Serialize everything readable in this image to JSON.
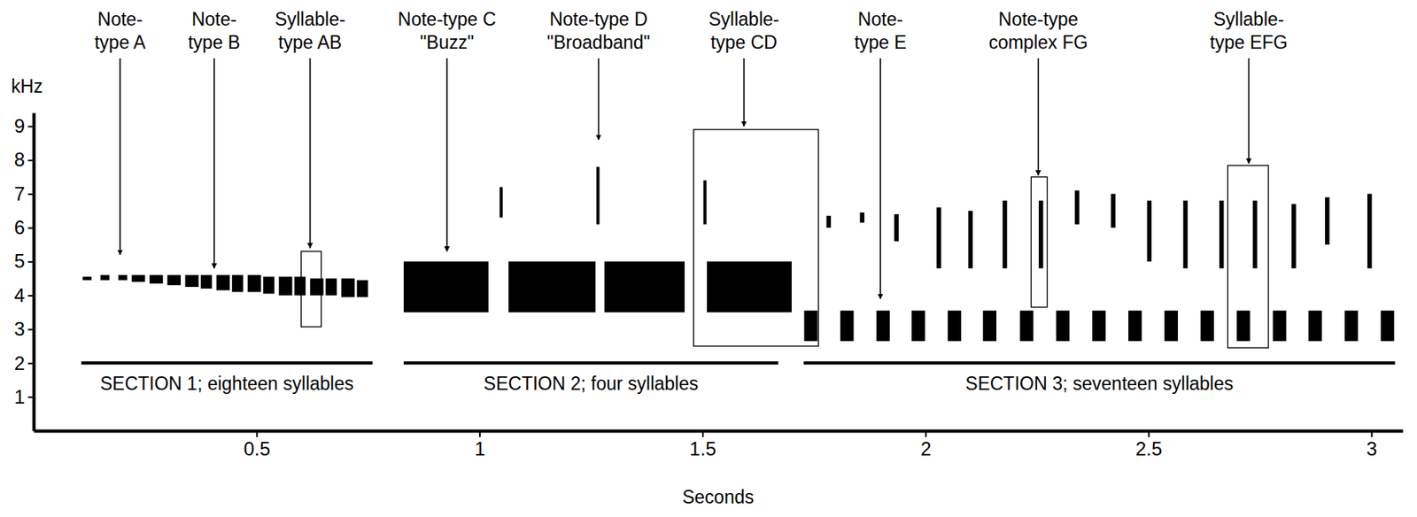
{
  "chart_data": {
    "type": "spectrogram",
    "xlabel": "Seconds",
    "ylabel": "kHz",
    "xlim": [
      0,
      3.07
    ],
    "xticks": [
      0.5,
      1,
      1.5,
      2,
      2.5,
      3
    ],
    "ylim": [
      0,
      9.4
    ],
    "yticks": [
      1,
      2,
      3,
      4,
      5,
      6,
      7,
      8,
      9
    ],
    "color": "#000000",
    "notes": [
      {
        "t0": 0.11,
        "t1": 0.13,
        "f0": 4.45,
        "f1": 4.55
      },
      {
        "t0": 0.15,
        "t1": 0.17,
        "f0": 4.45,
        "f1": 4.6
      },
      {
        "t0": 0.19,
        "t1": 0.21,
        "f0": 4.45,
        "f1": 4.6
      },
      {
        "t0": 0.22,
        "t1": 0.25,
        "f0": 4.4,
        "f1": 4.6
      },
      {
        "t0": 0.26,
        "t1": 0.29,
        "f0": 4.35,
        "f1": 4.6
      },
      {
        "t0": 0.3,
        "t1": 0.33,
        "f0": 4.3,
        "f1": 4.6
      },
      {
        "t0": 0.34,
        "t1": 0.37,
        "f0": 4.25,
        "f1": 4.6
      },
      {
        "t0": 0.375,
        "t1": 0.4,
        "f0": 4.2,
        "f1": 4.6
      },
      {
        "t0": 0.41,
        "t1": 0.44,
        "f0": 4.15,
        "f1": 4.6
      },
      {
        "t0": 0.445,
        "t1": 0.47,
        "f0": 4.1,
        "f1": 4.6
      },
      {
        "t0": 0.48,
        "t1": 0.51,
        "f0": 4.1,
        "f1": 4.6
      },
      {
        "t0": 0.515,
        "t1": 0.54,
        "f0": 4.05,
        "f1": 4.55
      },
      {
        "t0": 0.55,
        "t1": 0.58,
        "f0": 4.0,
        "f1": 4.55
      },
      {
        "t0": 0.585,
        "t1": 0.61,
        "f0": 4.0,
        "f1": 4.55
      },
      {
        "t0": 0.62,
        "t1": 0.65,
        "f0": 4.0,
        "f1": 4.5
      },
      {
        "t0": 0.655,
        "t1": 0.68,
        "f0": 4.0,
        "f1": 4.5
      },
      {
        "t0": 0.69,
        "t1": 0.72,
        "f0": 3.95,
        "f1": 4.5
      },
      {
        "t0": 0.725,
        "t1": 0.75,
        "f0": 3.95,
        "f1": 4.45
      },
      {
        "t0": 0.83,
        "t1": 1.02,
        "f0": 3.5,
        "f1": 5.0
      },
      {
        "t0": 1.045,
        "t1": 1.052,
        "f0": 6.3,
        "f1": 7.2
      },
      {
        "t0": 1.065,
        "t1": 1.26,
        "f0": 3.5,
        "f1": 5.0
      },
      {
        "t0": 1.262,
        "t1": 1.269,
        "f0": 6.1,
        "f1": 7.8
      },
      {
        "t0": 1.28,
        "t1": 1.46,
        "f0": 3.5,
        "f1": 5.0
      },
      {
        "t0": 1.502,
        "t1": 1.509,
        "f0": 6.1,
        "f1": 7.4
      },
      {
        "t0": 1.51,
        "t1": 1.7,
        "f0": 3.5,
        "f1": 5.0
      },
      {
        "t0": 1.728,
        "t1": 1.758,
        "f0": 2.65,
        "f1": 3.55
      },
      {
        "t0": 1.778,
        "t1": 1.788,
        "f0": 6.0,
        "f1": 6.35
      },
      {
        "t0": 1.809,
        "t1": 1.839,
        "f0": 2.65,
        "f1": 3.55
      },
      {
        "t0": 1.853,
        "t1": 1.863,
        "f0": 6.15,
        "f1": 6.45
      },
      {
        "t0": 1.89,
        "t1": 1.92,
        "f0": 2.65,
        "f1": 3.55
      },
      {
        "t0": 1.93,
        "t1": 1.94,
        "f0": 5.6,
        "f1": 6.4
      },
      {
        "t0": 1.969,
        "t1": 1.999,
        "f0": 2.65,
        "f1": 3.55
      },
      {
        "t0": 2.025,
        "t1": 2.035,
        "f0": 4.8,
        "f1": 6.6
      },
      {
        "t0": 2.05,
        "t1": 2.08,
        "f0": 2.65,
        "f1": 3.55
      },
      {
        "t0": 2.096,
        "t1": 2.106,
        "f0": 4.8,
        "f1": 6.5
      },
      {
        "t0": 2.129,
        "t1": 2.159,
        "f0": 2.65,
        "f1": 3.55
      },
      {
        "t0": 2.173,
        "t1": 2.183,
        "f0": 4.8,
        "f1": 6.8
      },
      {
        "t0": 2.212,
        "t1": 2.242,
        "f0": 2.65,
        "f1": 3.55
      },
      {
        "t0": 2.254,
        "t1": 2.264,
        "f0": 4.8,
        "f1": 6.8
      },
      {
        "t0": 2.293,
        "t1": 2.323,
        "f0": 2.65,
        "f1": 3.55
      },
      {
        "t0": 2.335,
        "t1": 2.345,
        "f0": 6.1,
        "f1": 7.1
      },
      {
        "t0": 2.374,
        "t1": 2.404,
        "f0": 2.65,
        "f1": 3.55
      },
      {
        "t0": 2.416,
        "t1": 2.426,
        "f0": 6.0,
        "f1": 7.0
      },
      {
        "t0": 2.455,
        "t1": 2.485,
        "f0": 2.65,
        "f1": 3.55
      },
      {
        "t0": 2.497,
        "t1": 2.507,
        "f0": 5.0,
        "f1": 6.8
      },
      {
        "t0": 2.536,
        "t1": 2.566,
        "f0": 2.65,
        "f1": 3.55
      },
      {
        "t0": 2.578,
        "t1": 2.588,
        "f0": 4.8,
        "f1": 6.8
      },
      {
        "t0": 2.617,
        "t1": 2.647,
        "f0": 2.65,
        "f1": 3.55
      },
      {
        "t0": 2.659,
        "t1": 2.669,
        "f0": 4.8,
        "f1": 6.8
      },
      {
        "t0": 2.698,
        "t1": 2.728,
        "f0": 2.65,
        "f1": 3.55
      },
      {
        "t0": 2.734,
        "t1": 2.744,
        "f0": 4.8,
        "f1": 6.8
      },
      {
        "t0": 2.779,
        "t1": 2.809,
        "f0": 2.65,
        "f1": 3.55
      },
      {
        "t0": 2.821,
        "t1": 2.831,
        "f0": 4.8,
        "f1": 6.7
      },
      {
        "t0": 2.859,
        "t1": 2.889,
        "f0": 2.65,
        "f1": 3.55
      },
      {
        "t0": 2.896,
        "t1": 2.906,
        "f0": 5.5,
        "f1": 6.9
      },
      {
        "t0": 2.94,
        "t1": 2.97,
        "f0": 2.65,
        "f1": 3.55
      },
      {
        "t0": 2.991,
        "t1": 3.001,
        "f0": 4.8,
        "f1": 7.0
      },
      {
        "t0": 3.021,
        "t1": 3.051,
        "f0": 2.65,
        "f1": 3.55
      }
    ],
    "boxes": [
      {
        "t0": 0.6,
        "t1": 0.645,
        "f0": 3.07,
        "f1": 5.3
      },
      {
        "t0": 1.48,
        "t1": 1.76,
        "f0": 2.5,
        "f1": 8.9
      },
      {
        "t0": 2.237,
        "t1": 2.273,
        "f0": 3.65,
        "f1": 7.5
      },
      {
        "t0": 2.678,
        "t1": 2.769,
        "f0": 2.45,
        "f1": 7.84
      }
    ],
    "annotations": [
      {
        "lines": [
          "Note-",
          "type A"
        ],
        "t": 0.194,
        "f": 5.2
      },
      {
        "lines": [
          "Note-",
          "type B"
        ],
        "t": 0.405,
        "f": 4.8
      },
      {
        "lines": [
          "Syllable-",
          "type AB"
        ],
        "t": 0.62,
        "f": 5.4
      },
      {
        "lines": [
          "Note-type C",
          "\"Buzz\""
        ],
        "t": 0.927,
        "f": 5.3
      },
      {
        "lines": [
          "Note-type D",
          "\"Broadband\""
        ],
        "t": 1.267,
        "f": 8.6
      },
      {
        "lines": [
          "Syllable-",
          "type CD"
        ],
        "t": 1.593,
        "f": 9.0
      },
      {
        "lines": [
          "Note-",
          "type E"
        ],
        "t": 1.899,
        "f": 3.9
      },
      {
        "lines": [
          "Note-type",
          "complex FG"
        ],
        "t": 2.253,
        "f": 7.55
      },
      {
        "lines": [
          "Syllable-",
          "type EFG"
        ],
        "t": 2.725,
        "f": 7.9
      }
    ],
    "sections": [
      {
        "label": "SECTION 1; eighteen syllables",
        "t0": 0.107,
        "t1": 0.76,
        "f": 2.0
      },
      {
        "label": "SECTION 2; four syllables",
        "t0": 0.83,
        "t1": 1.67,
        "f": 2.0
      },
      {
        "label": "SECTION 3; seventeen syllables",
        "t0": 1.727,
        "t1": 3.053,
        "f": 2.0
      }
    ]
  }
}
